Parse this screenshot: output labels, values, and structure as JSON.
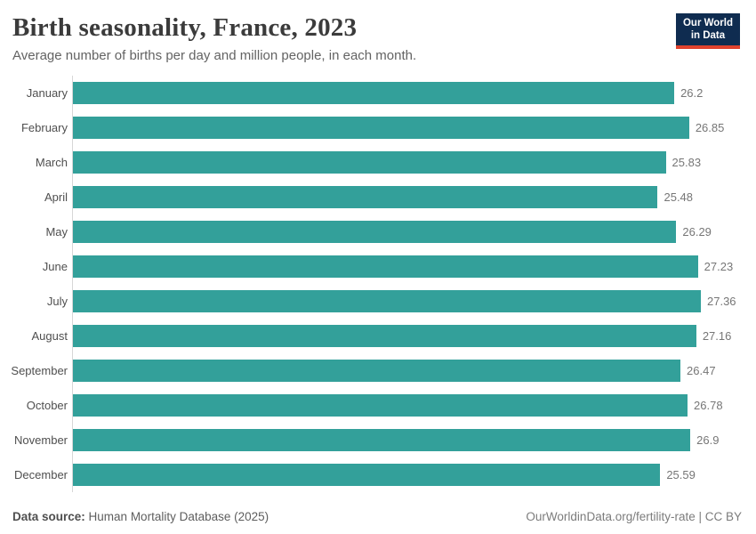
{
  "header": {
    "title": "Birth seasonality, France, 2023",
    "subtitle": "Average number of births per day and million people, in each month.",
    "logo": {
      "line1": "Our World",
      "line2": "in Data"
    }
  },
  "chart_data": {
    "type": "bar",
    "orientation": "horizontal",
    "title": "Birth seasonality, France, 2023",
    "subtitle": "Average number of births per day and million people, in each month.",
    "categories": [
      "January",
      "February",
      "March",
      "April",
      "May",
      "June",
      "July",
      "August",
      "September",
      "October",
      "November",
      "December"
    ],
    "values": [
      26.2,
      26.85,
      25.83,
      25.48,
      26.29,
      27.23,
      27.36,
      27.16,
      26.47,
      26.78,
      26.9,
      25.59
    ],
    "value_labels": [
      "26.2",
      "26.85",
      "25.83",
      "25.48",
      "26.29",
      "27.23",
      "27.36",
      "27.16",
      "26.47",
      "26.78",
      "26.9",
      "25.59"
    ],
    "xlabel": "",
    "ylabel": "",
    "xlim": [
      0,
      27.36
    ],
    "grid": false,
    "legend": "none",
    "bar_color": "#33a09a"
  },
  "footer": {
    "source_label": "Data source:",
    "source_text": "Human Mortality Database (2025)",
    "credit_text": "OurWorldinData.org/fertility-rate | CC BY"
  },
  "colors": {
    "bar": "#33a09a",
    "axis_line": "#d7d7d7",
    "logo_background": "#0f2c50",
    "logo_underline": "#e0422d"
  }
}
